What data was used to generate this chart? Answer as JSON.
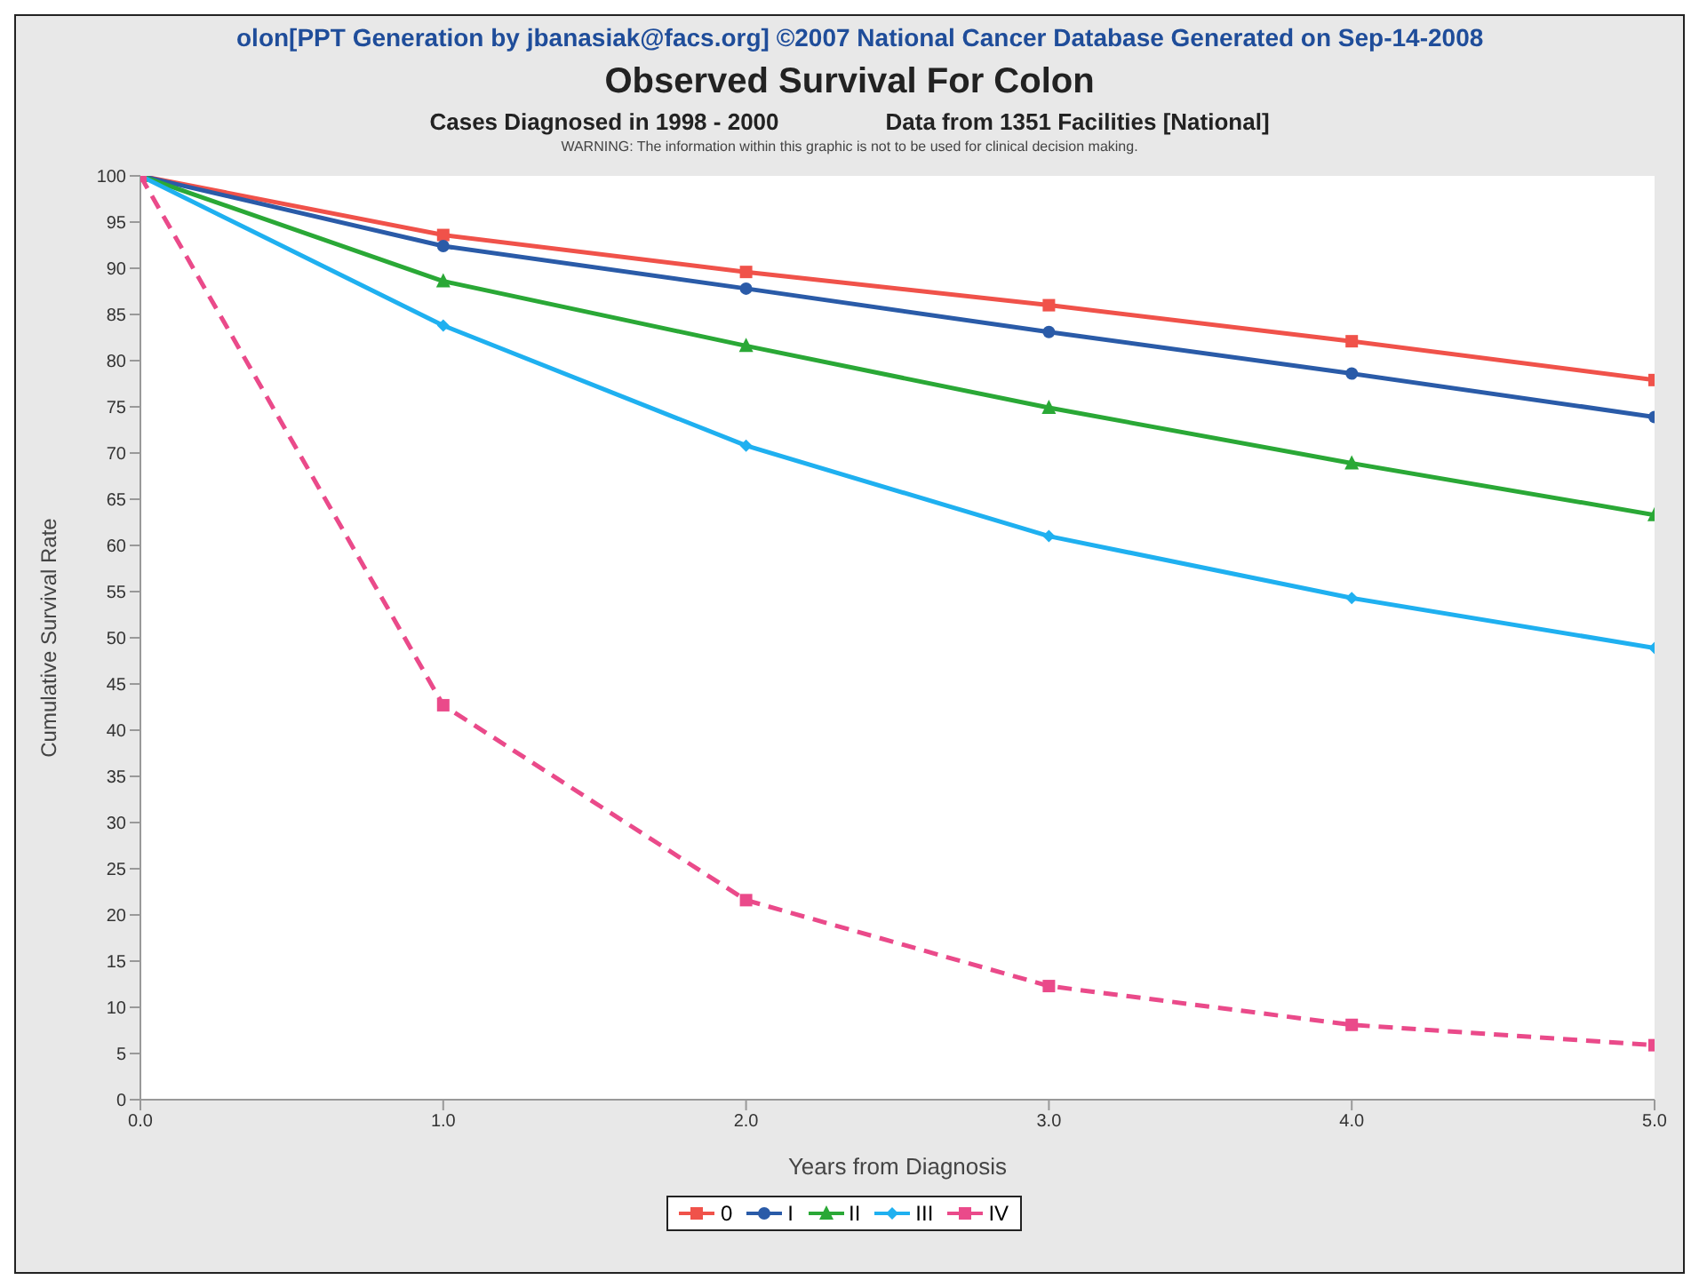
{
  "chart_data": {
    "type": "line",
    "title": "Observed Survival For Colon",
    "subtitle": "Cases Diagnosed in 1998 - 2000",
    "xlabel": "Years from Diagnosis",
    "ylabel": "Cumulative Survival Rate",
    "annotations": [
      "olon[PPT Generation by jbanasiak@facs.org] ©2007 National Cancer Database Generated on Sep-14-2008",
      "Data from 1351 Facilities [National]",
      "WARNING: The information within this graphic is not to be used for clinical decision making."
    ],
    "x": [
      0,
      1,
      2,
      3,
      4,
      5
    ],
    "series": [
      {
        "name": "0",
        "color": "#f0524a",
        "marker": "square",
        "line_style": "solid",
        "values": [
          100,
          93.6,
          89.6,
          86.0,
          82.1,
          77.9
        ]
      },
      {
        "name": "I",
        "color": "#2a5ba8",
        "marker": "circle",
        "line_style": "solid",
        "values": [
          100,
          92.4,
          87.8,
          83.1,
          78.6,
          73.9
        ]
      },
      {
        "name": "II",
        "color": "#2aa836",
        "marker": "triangle",
        "line_style": "solid",
        "values": [
          100,
          88.6,
          81.6,
          74.9,
          68.9,
          63.3
        ]
      },
      {
        "name": "III",
        "color": "#1fb0f0",
        "marker": "diamond",
        "line_style": "solid",
        "values": [
          100,
          83.8,
          70.8,
          61.0,
          54.3,
          48.9
        ]
      },
      {
        "name": "IV",
        "color": "#ea4a8a",
        "marker": "square",
        "line_style": "dashed",
        "values": [
          100,
          42.7,
          21.6,
          12.3,
          8.1,
          5.9
        ]
      }
    ],
    "xlim": [
      0,
      5
    ],
    "xticks": [
      {
        "value": 0,
        "label": "0.0"
      },
      {
        "value": 1,
        "label": "1.0"
      },
      {
        "value": 2,
        "label": "2.0"
      },
      {
        "value": 3,
        "label": "3.0"
      },
      {
        "value": 4,
        "label": "4.0"
      },
      {
        "value": 5,
        "label": "5.0"
      }
    ],
    "ylim": [
      0,
      100
    ],
    "yticks": [
      0,
      5,
      10,
      15,
      20,
      25,
      30,
      35,
      40,
      45,
      50,
      55,
      60,
      65,
      70,
      75,
      80,
      85,
      90,
      95,
      100
    ],
    "legend": "bottom"
  }
}
